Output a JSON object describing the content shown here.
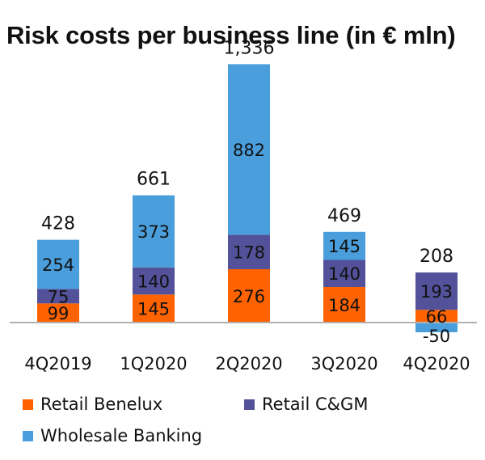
{
  "chart_data": {
    "type": "bar",
    "stacked": true,
    "title": "Risk costs per business line (in € mln)",
    "xlabel": "",
    "ylabel": "",
    "categories": [
      "4Q2019",
      "1Q2020",
      "2Q2020",
      "3Q2020",
      "4Q2020"
    ],
    "series": [
      {
        "name": "Retail Benelux",
        "color": "#ff6200",
        "values": [
          99,
          145,
          276,
          184,
          66
        ],
        "labels": [
          "99",
          "145",
          "276",
          "184",
          "66"
        ]
      },
      {
        "name": "Retail C&GM",
        "color": "#525199",
        "values": [
          75,
          140,
          178,
          140,
          193
        ],
        "labels": [
          "75",
          "140",
          "178",
          "140",
          "193"
        ]
      },
      {
        "name": "Wholesale Banking",
        "color": "#4a9edb",
        "values": [
          254,
          373,
          882,
          145,
          -50
        ],
        "labels": [
          "254",
          "373",
          "882",
          "145",
          "-50"
        ]
      }
    ],
    "totals": [
      428,
      661,
      1336,
      469,
      208
    ],
    "total_labels": [
      "428",
      "661",
      "1,336",
      "469",
      "208"
    ],
    "ylim": [
      -100,
      1450
    ],
    "grid": false,
    "legend": "bottom"
  },
  "colors": {
    "axis": "#b0b0b0",
    "text": "#111111"
  }
}
